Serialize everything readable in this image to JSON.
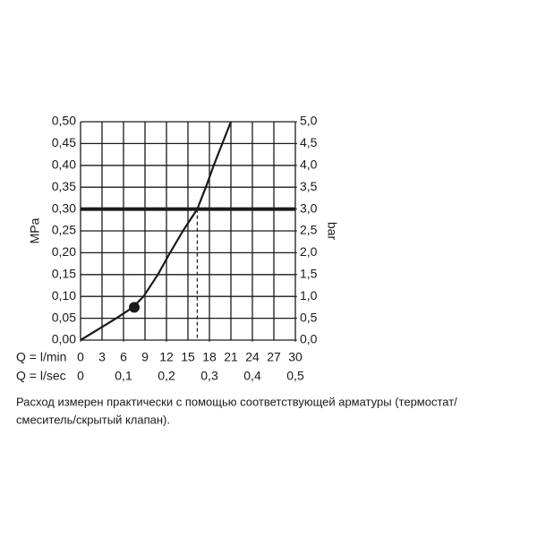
{
  "chart_data": {
    "type": "line",
    "y_label": "MPa",
    "y2_label": "bar",
    "x_label": "Q = l/min",
    "x2_label": "Q = l/sec",
    "x": [
      0,
      2.5,
      5,
      7.3,
      8.8,
      10.8,
      12.5,
      14.3,
      16.3,
      17.5,
      18.6,
      19.8,
      21
    ],
    "series": [
      {
        "color": "#1a1a1a",
        "values": [
          0,
          0.025,
          0.05,
          0.075,
          0.1,
          0.15,
          0.2,
          0.25,
          0.3,
          0.35,
          0.4,
          0.45,
          0.5
        ]
      }
    ],
    "marker": {
      "x": 7.5,
      "y": 0.075
    },
    "operating_pressure": 0.3,
    "operating_flow": 16.3,
    "xlim": [
      0,
      30
    ],
    "xticks": [
      0,
      3,
      6,
      9,
      12,
      15,
      18,
      21,
      24,
      27,
      30
    ],
    "x2lim": [
      0,
      0.5
    ],
    "x2ticks": [
      0,
      {
        "value": 0.1,
        "label": "0,1"
      },
      {
        "value": 0.2,
        "label": "0,2"
      },
      {
        "value": 0.3,
        "label": "0,3"
      },
      {
        "value": 0.4,
        "label": "0,4"
      },
      {
        "value": 0.5,
        "label": "0,5"
      }
    ],
    "ylim": [
      0,
      0.5
    ],
    "yticks": [
      {
        "value": 0,
        "label": "0,00"
      },
      {
        "value": 0.05,
        "label": "0,05"
      },
      {
        "value": 0.1,
        "label": "0,10"
      },
      {
        "value": 0.15,
        "label": "0,15"
      },
      {
        "value": 0.2,
        "label": "0,20"
      },
      {
        "value": 0.25,
        "label": "0,25"
      },
      {
        "value": 0.3,
        "label": "0,30"
      },
      {
        "value": 0.35,
        "label": "0,35"
      },
      {
        "value": 0.4,
        "label": "0,40"
      },
      {
        "value": 0.45,
        "label": "0,45"
      },
      {
        "value": 0.5,
        "label": "0,50"
      }
    ],
    "y2lim": [
      0,
      5
    ],
    "y2ticks": [
      {
        "value": 0,
        "label": "0,0"
      },
      {
        "value": 0.5,
        "label": "0,5"
      },
      {
        "value": 1,
        "label": "1,0"
      },
      {
        "value": 1.5,
        "label": "1,5"
      },
      {
        "value": 2,
        "label": "2,0"
      },
      {
        "value": 2.5,
        "label": "2,5"
      },
      {
        "value": 3,
        "label": "3,0"
      },
      {
        "value": 3.5,
        "label": "3,5"
      },
      {
        "value": 4,
        "label": "4,0"
      },
      {
        "value": 4.5,
        "label": "4,5"
      },
      {
        "value": 5,
        "label": "5,0"
      }
    ],
    "grid": true,
    "caption_lines": [
      "Расход измерен практически с помощью соответствующей арматуры (термостат/",
      "смеситель/скрытый клапан)."
    ]
  }
}
